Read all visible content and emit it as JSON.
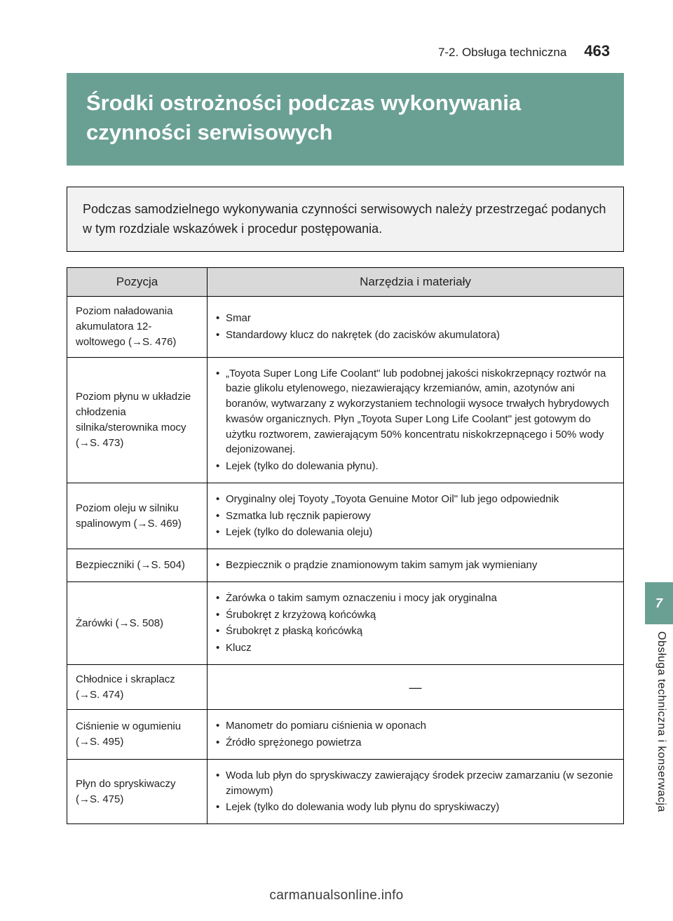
{
  "colors": {
    "accent": "#6aa093",
    "header_bg": "#d9d9d9",
    "intro_bg": "#f2f2f2",
    "text": "#222222",
    "border": "#000000",
    "page_bg": "#ffffff"
  },
  "typography": {
    "base_font": "Helvetica Neue, Arial, sans-serif",
    "title_size_pt": 23,
    "body_size_pt": 11,
    "table_size_pt": 11
  },
  "header": {
    "section_label": "7-2. Obsługa techniczna",
    "page_number": "463"
  },
  "title": "Środki ostrożności podczas wykonywania czynności serwisowych",
  "intro": "Podczas samodzielnego wykonywania czynności serwisowych należy przestrzegać podanych w tym rozdziale wskazówek i procedur postępowania.",
  "table": {
    "col_position": "Pozycja",
    "col_tools": "Narzędzia i materiały",
    "rows": [
      {
        "position": "Poziom naładowania akumulatora 12-woltowego (→S. 476)",
        "tools": [
          "Smar",
          "Standardowy klucz do nakrętek (do zacisków akumulatora)"
        ]
      },
      {
        "position": "Poziom płynu w układzie chłodzenia silnika/sterownika mocy (→S. 473)",
        "tools": [
          "„Toyota Super Long Life Coolant\" lub podobnej jakości niskokrzepnący roztwór na bazie glikolu etylenowego, niezawierający krzemianów, amin, azotynów ani boranów, wytwarzany z wykorzystaniem technologii wysoce trwałych hybrydowych kwasów organicznych. Płyn „Toyota Super Long Life Coolant\" jest gotowym do użytku roztworem, zawierającym 50% koncentratu niskokrzepnącego i 50% wody dejonizowanej.",
          "Lejek (tylko do dolewania płynu)."
        ]
      },
      {
        "position": "Poziom oleju w silniku spalinowym (→S. 469)",
        "tools": [
          "Oryginalny olej Toyoty „Toyota Genuine Motor Oil\" lub jego odpowiednik",
          "Szmatka lub ręcznik papierowy",
          "Lejek (tylko do dolewania oleju)"
        ]
      },
      {
        "position": "Bezpieczniki (→S. 504)",
        "tools": [
          "Bezpiecznik o prądzie znamionowym takim samym jak wymieniany"
        ]
      },
      {
        "position": "Żarówki (→S. 508)",
        "tools": [
          "Żarówka o takim samym oznaczeniu i mocy jak oryginalna",
          "Śrubokręt z krzyżową końcówką",
          "Śrubokręt z płaską końcówką",
          "Klucz"
        ]
      },
      {
        "position": "Chłodnice i skraplacz (→S. 474)",
        "dash": "—"
      },
      {
        "position": "Ciśnienie w ogumieniu (→S. 495)",
        "tools": [
          "Manometr do pomiaru ciśnienia w oponach",
          "Źródło sprężonego powietrza"
        ]
      },
      {
        "position": "Płyn do spryskiwaczy (→S. 475)",
        "tools": [
          "Woda lub płyn do spryskiwaczy zawierający środek przeciw zamarzaniu (w sezonie zimowym)",
          "Lejek (tylko do dolewania wody lub płynu do spryskiwaczy)"
        ]
      }
    ]
  },
  "side": {
    "chapter_num": "7",
    "chapter_label": "Obsługa techniczna i konserwacja"
  },
  "footer": "carmanualsonline.info"
}
